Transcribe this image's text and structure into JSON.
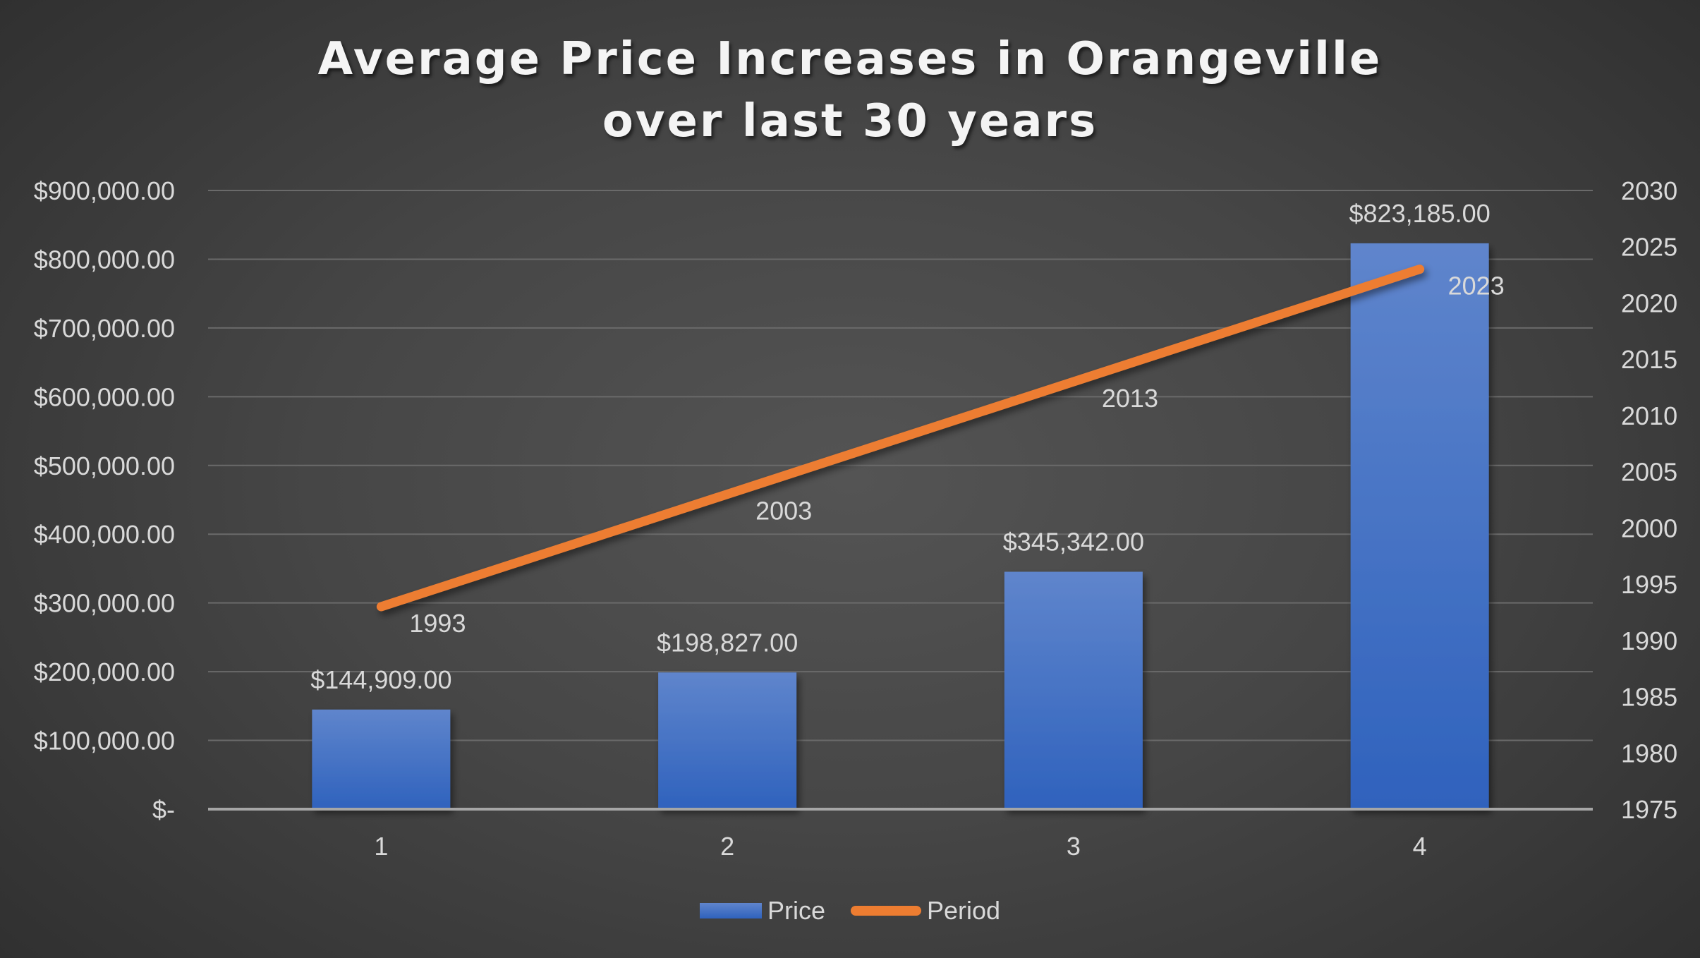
{
  "chart_data": {
    "type": "bar+line",
    "title": "Average Price Increases in Orangeville over last 30 years",
    "title_lines": [
      "Average Price Increases in Orangeville",
      "over last 30 years"
    ],
    "categories": [
      "1",
      "2",
      "3",
      "4"
    ],
    "xlabel": "",
    "series": [
      {
        "name": "Price",
        "type": "bar",
        "axis": "primary",
        "color": "#4472c4",
        "values": [
          144909,
          198827,
          345342,
          823185
        ],
        "data_labels": [
          "$144,909.00",
          "$198,827.00",
          "$345,342.00",
          "$823,185.00"
        ]
      },
      {
        "name": "Period",
        "type": "line",
        "axis": "secondary",
        "color": "#ed7d31",
        "values": [
          1993,
          2003,
          2013,
          2023
        ],
        "data_labels": [
          "1993",
          "2003",
          "2013",
          "2023"
        ]
      }
    ],
    "y_primary": {
      "range": [
        0,
        900000
      ],
      "ticks": [
        0,
        100000,
        200000,
        300000,
        400000,
        500000,
        600000,
        700000,
        800000,
        900000
      ],
      "tick_labels": [
        "$-",
        "$100,000.00",
        "$200,000.00",
        "$300,000.00",
        "$400,000.00",
        "$500,000.00",
        "$600,000.00",
        "$700,000.00",
        "$800,000.00",
        "$900,000.00"
      ]
    },
    "y_secondary": {
      "range": [
        1975,
        2030
      ],
      "ticks": [
        1975,
        1980,
        1985,
        1990,
        1995,
        2000,
        2005,
        2010,
        2015,
        2020,
        2025,
        2030
      ],
      "tick_labels": [
        "1975",
        "1980",
        "1985",
        "1990",
        "1995",
        "2000",
        "2005",
        "2010",
        "2015",
        "2020",
        "2025",
        "2030"
      ]
    },
    "grid": true,
    "legend": {
      "position": "bottom",
      "entries": [
        "Price",
        "Period"
      ]
    },
    "background": "#404040",
    "text_color": "#d9d9d9"
  }
}
